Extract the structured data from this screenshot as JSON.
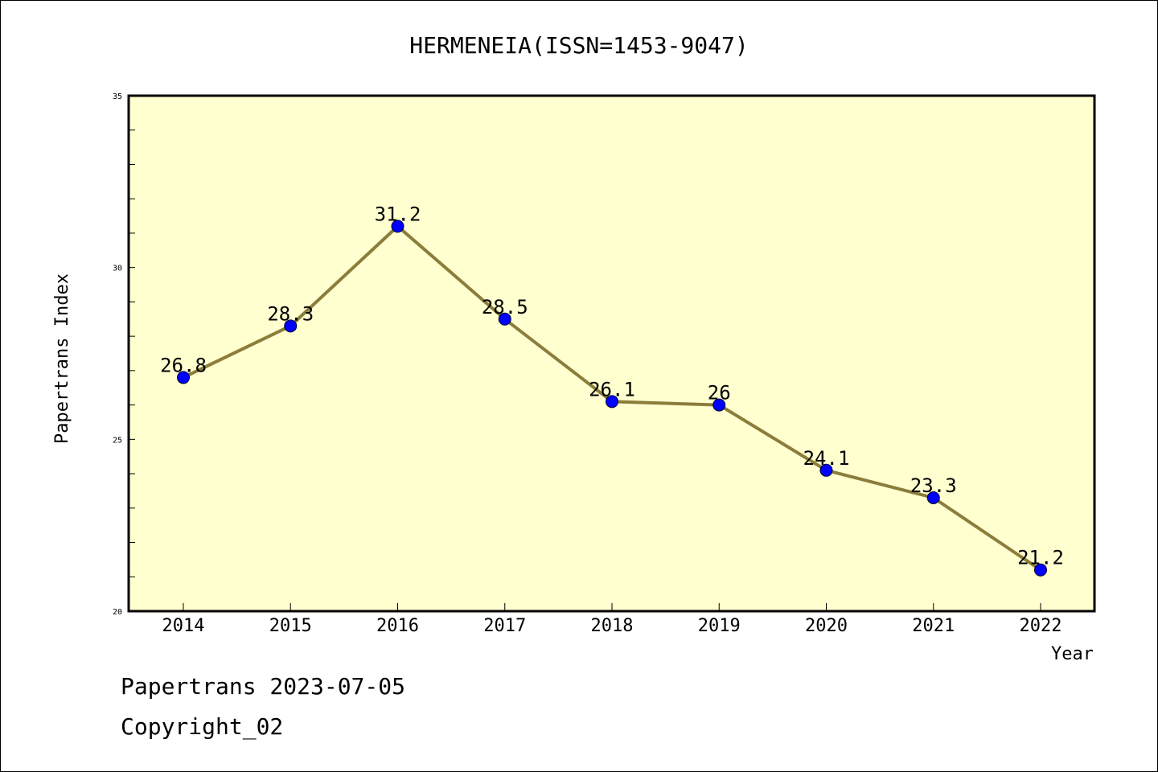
{
  "chart_data": {
    "type": "line",
    "title": "HERMENEIA(ISSN=1453-9047)",
    "xlabel": "Year",
    "ylabel": "Papertrans Index",
    "categories": [
      "2014",
      "2015",
      "2016",
      "2017",
      "2018",
      "2019",
      "2020",
      "2021",
      "2022"
    ],
    "values": [
      26.8,
      28.3,
      31.2,
      28.5,
      26.1,
      26,
      24.1,
      23.3,
      21.2
    ],
    "data_labels": [
      "26.8",
      "28.3",
      "31.2",
      "28.5",
      "26.1",
      "26",
      "24.1",
      "23.3",
      "21.2"
    ],
    "ylim": [
      20,
      35
    ],
    "y_ticks": [
      "20",
      "25",
      "30",
      "35"
    ],
    "grid": false,
    "colors": {
      "plot_background": "#FFFFD0",
      "line": "#8B7D3A",
      "marker": "#0000FF"
    }
  },
  "footer": {
    "line1": "Papertrans 2023-07-05",
    "line2": "Copyright_02"
  }
}
